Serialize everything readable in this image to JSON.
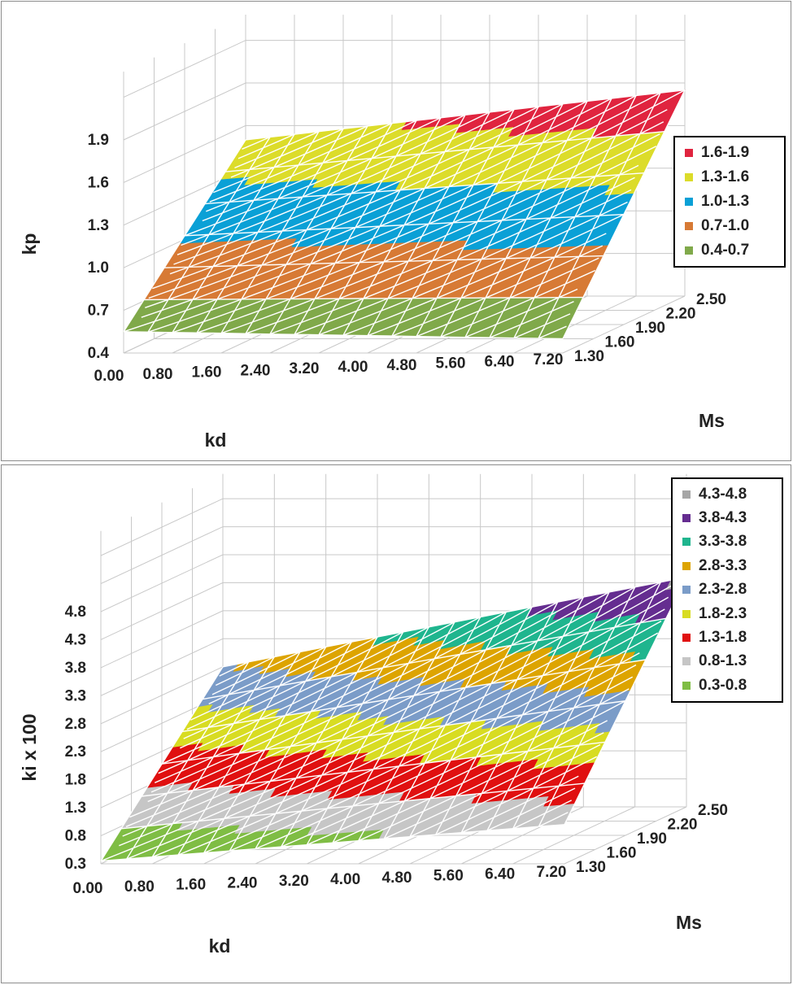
{
  "chart_data": [
    {
      "type": "surface",
      "xlabel": "kd",
      "ylabel": "Ms",
      "zlabel": "kp",
      "x_ticks": [
        "0.00",
        "0.80",
        "1.60",
        "2.40",
        "3.20",
        "4.00",
        "4.80",
        "5.60",
        "6.40",
        "7.20"
      ],
      "y_ticks": [
        "1.30",
        "1.60",
        "1.90",
        "2.20",
        "2.50"
      ],
      "z_ticks": [
        "0.4",
        "0.7",
        "1.0",
        "1.3",
        "1.6",
        "1.9"
      ],
      "xlim": [
        0,
        7.2
      ],
      "ylim": [
        1.3,
        2.5
      ],
      "zlim": [
        0.4,
        1.9
      ],
      "corner_values": {
        "x0_y1.3": 0.55,
        "x7.2_y1.3": 0.5,
        "x0_y2.5": 1.5,
        "x7.2_y2.5": 1.85
      },
      "legend_position": "right",
      "legend": [
        {
          "label": "1.6-1.9",
          "color": "#e0243f"
        },
        {
          "label": "1.3-1.6",
          "color": "#dcdc2a"
        },
        {
          "label": "1.0-1.3",
          "color": "#0aa0d6"
        },
        {
          "label": "0.7-1.0",
          "color": "#d77a35"
        },
        {
          "label": "0.4-0.7",
          "color": "#80a94a"
        }
      ],
      "grid": true
    },
    {
      "type": "surface",
      "xlabel": "kd",
      "ylabel": "Ms",
      "zlabel": "ki x 100",
      "x_ticks": [
        "0.00",
        "0.80",
        "1.60",
        "2.40",
        "3.20",
        "4.00",
        "4.80",
        "5.60",
        "6.40",
        "7.20"
      ],
      "y_ticks": [
        "1.30",
        "1.60",
        "1.90",
        "2.20",
        "2.50"
      ],
      "z_ticks": [
        "0.3",
        "0.8",
        "1.3",
        "1.8",
        "2.3",
        "2.8",
        "3.3",
        "3.8",
        "4.3",
        "4.8"
      ],
      "xlim": [
        0,
        7.2
      ],
      "ylim": [
        1.3,
        2.5
      ],
      "zlim": [
        0.3,
        4.8
      ],
      "corner_values": {
        "x0_y1.3": 0.35,
        "x7.2_y1.3": 1.0,
        "x0_y2.5": 2.8,
        "x7.2_y2.5": 4.4
      },
      "legend_position": "top-right",
      "legend": [
        {
          "label": "4.3-4.8",
          "color": "#a6a6a6"
        },
        {
          "label": "3.8-4.3",
          "color": "#652d90"
        },
        {
          "label": "3.3-3.8",
          "color": "#1fb58e"
        },
        {
          "label": "2.8-3.3",
          "color": "#dda400"
        },
        {
          "label": "2.3-2.8",
          "color": "#7b9cc8"
        },
        {
          "label": "1.8-2.3",
          "color": "#d8dc22"
        },
        {
          "label": "1.3-1.8",
          "color": "#e01010"
        },
        {
          "label": "0.8-1.3",
          "color": "#c6c6c6"
        },
        {
          "label": "0.3-0.8",
          "color": "#7fbd44"
        }
      ],
      "grid": true
    }
  ]
}
